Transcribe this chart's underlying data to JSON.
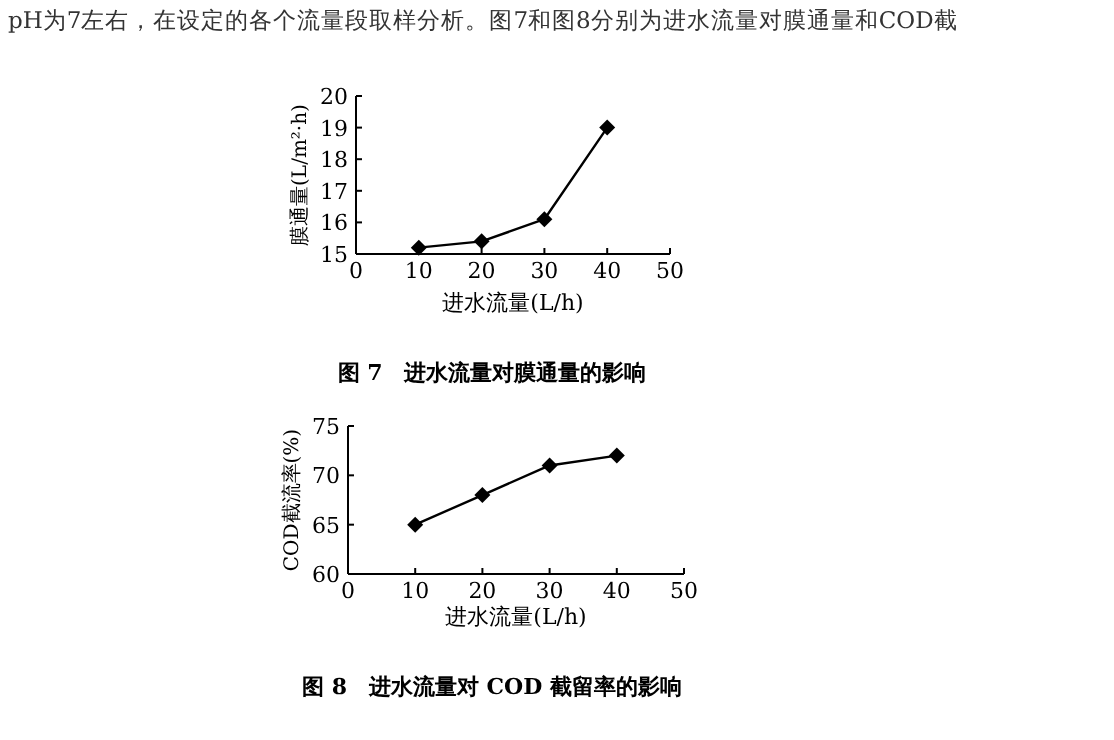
{
  "chart_data": [
    {
      "type": "line",
      "title": "图 7　进水流量对膜通量的影响",
      "xlabel": "进水流量(L/h)",
      "ylabel": "膜通量(L/m²·h)",
      "annotations": [
        "pH为7左右，在设定的各个流量段取样分析。图7和图8分别为进水流量对膜通量和COD截"
      ],
      "x": [
        10,
        20,
        30,
        40
      ],
      "series": [
        {
          "color": "#000000",
          "values": [
            15.2,
            15.4,
            16.1,
            19.0
          ]
        }
      ],
      "xlim": [
        0,
        50
      ],
      "xticks": [
        0,
        10,
        20,
        30,
        40,
        50
      ],
      "ylim": [
        15,
        20
      ],
      "yticks": [
        15,
        16,
        17,
        18,
        19,
        20
      ],
      "marker": "diamond",
      "line_style": "solid",
      "grid": false
    },
    {
      "type": "line",
      "title": "图 8　进水流量对 COD 截留率的影响",
      "xlabel": "进水流量(L/h)",
      "ylabel": "COD截流率(%)",
      "x": [
        10,
        20,
        30,
        40
      ],
      "series": [
        {
          "color": "#000000",
          "values": [
            65,
            68,
            71,
            72
          ]
        }
      ],
      "xlim": [
        0,
        50
      ],
      "xticks": [
        0,
        10,
        20,
        30,
        40,
        50
      ],
      "ylim": [
        60,
        75
      ],
      "yticks": [
        60,
        65,
        70,
        75
      ],
      "marker": "diamond",
      "line_style": "solid",
      "grid": false
    }
  ]
}
